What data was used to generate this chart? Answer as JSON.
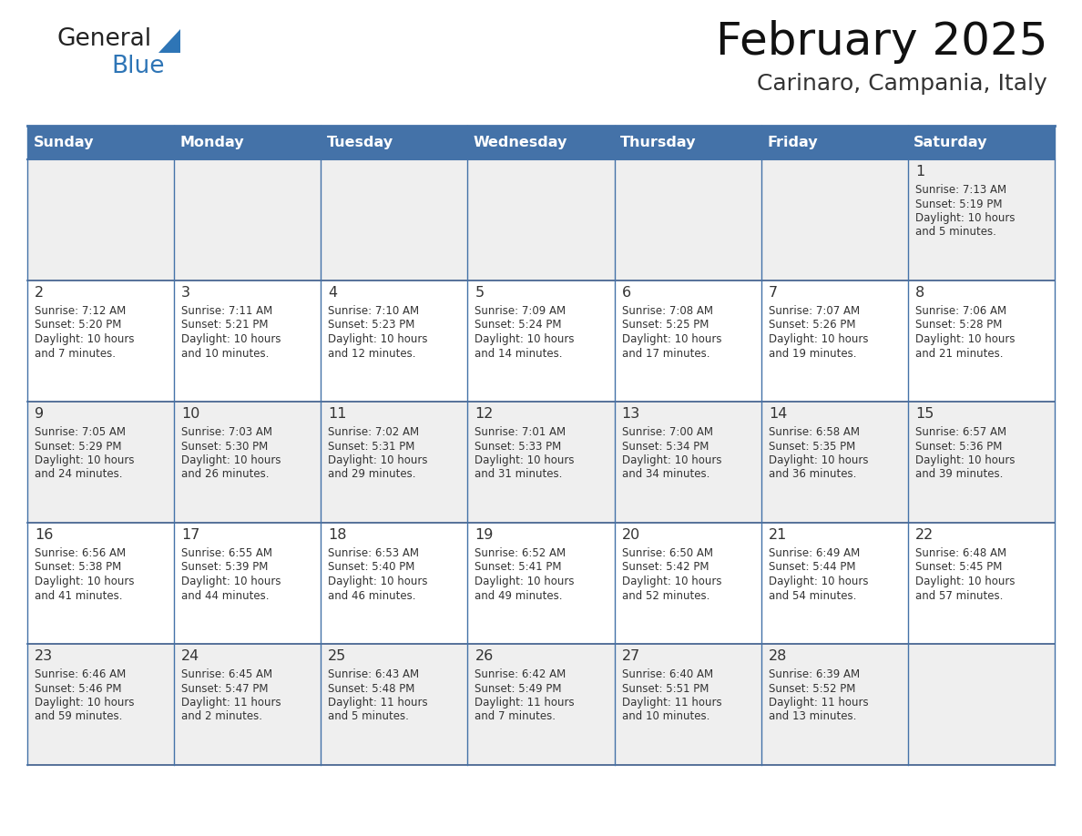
{
  "title": "February 2025",
  "subtitle": "Carinaro, Campania, Italy",
  "days_of_week": [
    "Sunday",
    "Monday",
    "Tuesday",
    "Wednesday",
    "Thursday",
    "Friday",
    "Saturday"
  ],
  "header_bg": "#4472A8",
  "header_text_color": "#FFFFFF",
  "row_bg": [
    "#EFEFEF",
    "#FFFFFF",
    "#EFEFEF",
    "#FFFFFF",
    "#EFEFEF"
  ],
  "grid_line_color": "#4472A8",
  "row_line_color": "#3A5A8A",
  "text_color": "#333333",
  "day_num_color": "#333333",
  "calendar": [
    [
      null,
      null,
      null,
      null,
      null,
      null,
      {
        "day": 1,
        "sunrise": "7:13 AM",
        "sunset": "5:19 PM",
        "daylight": "10 hours\nand 5 minutes."
      }
    ],
    [
      {
        "day": 2,
        "sunrise": "7:12 AM",
        "sunset": "5:20 PM",
        "daylight": "10 hours\nand 7 minutes."
      },
      {
        "day": 3,
        "sunrise": "7:11 AM",
        "sunset": "5:21 PM",
        "daylight": "10 hours\nand 10 minutes."
      },
      {
        "day": 4,
        "sunrise": "7:10 AM",
        "sunset": "5:23 PM",
        "daylight": "10 hours\nand 12 minutes."
      },
      {
        "day": 5,
        "sunrise": "7:09 AM",
        "sunset": "5:24 PM",
        "daylight": "10 hours\nand 14 minutes."
      },
      {
        "day": 6,
        "sunrise": "7:08 AM",
        "sunset": "5:25 PM",
        "daylight": "10 hours\nand 17 minutes."
      },
      {
        "day": 7,
        "sunrise": "7:07 AM",
        "sunset": "5:26 PM",
        "daylight": "10 hours\nand 19 minutes."
      },
      {
        "day": 8,
        "sunrise": "7:06 AM",
        "sunset": "5:28 PM",
        "daylight": "10 hours\nand 21 minutes."
      }
    ],
    [
      {
        "day": 9,
        "sunrise": "7:05 AM",
        "sunset": "5:29 PM",
        "daylight": "10 hours\nand 24 minutes."
      },
      {
        "day": 10,
        "sunrise": "7:03 AM",
        "sunset": "5:30 PM",
        "daylight": "10 hours\nand 26 minutes."
      },
      {
        "day": 11,
        "sunrise": "7:02 AM",
        "sunset": "5:31 PM",
        "daylight": "10 hours\nand 29 minutes."
      },
      {
        "day": 12,
        "sunrise": "7:01 AM",
        "sunset": "5:33 PM",
        "daylight": "10 hours\nand 31 minutes."
      },
      {
        "day": 13,
        "sunrise": "7:00 AM",
        "sunset": "5:34 PM",
        "daylight": "10 hours\nand 34 minutes."
      },
      {
        "day": 14,
        "sunrise": "6:58 AM",
        "sunset": "5:35 PM",
        "daylight": "10 hours\nand 36 minutes."
      },
      {
        "day": 15,
        "sunrise": "6:57 AM",
        "sunset": "5:36 PM",
        "daylight": "10 hours\nand 39 minutes."
      }
    ],
    [
      {
        "day": 16,
        "sunrise": "6:56 AM",
        "sunset": "5:38 PM",
        "daylight": "10 hours\nand 41 minutes."
      },
      {
        "day": 17,
        "sunrise": "6:55 AM",
        "sunset": "5:39 PM",
        "daylight": "10 hours\nand 44 minutes."
      },
      {
        "day": 18,
        "sunrise": "6:53 AM",
        "sunset": "5:40 PM",
        "daylight": "10 hours\nand 46 minutes."
      },
      {
        "day": 19,
        "sunrise": "6:52 AM",
        "sunset": "5:41 PM",
        "daylight": "10 hours\nand 49 minutes."
      },
      {
        "day": 20,
        "sunrise": "6:50 AM",
        "sunset": "5:42 PM",
        "daylight": "10 hours\nand 52 minutes."
      },
      {
        "day": 21,
        "sunrise": "6:49 AM",
        "sunset": "5:44 PM",
        "daylight": "10 hours\nand 54 minutes."
      },
      {
        "day": 22,
        "sunrise": "6:48 AM",
        "sunset": "5:45 PM",
        "daylight": "10 hours\nand 57 minutes."
      }
    ],
    [
      {
        "day": 23,
        "sunrise": "6:46 AM",
        "sunset": "5:46 PM",
        "daylight": "10 hours\nand 59 minutes."
      },
      {
        "day": 24,
        "sunrise": "6:45 AM",
        "sunset": "5:47 PM",
        "daylight": "11 hours\nand 2 minutes."
      },
      {
        "day": 25,
        "sunrise": "6:43 AM",
        "sunset": "5:48 PM",
        "daylight": "11 hours\nand 5 minutes."
      },
      {
        "day": 26,
        "sunrise": "6:42 AM",
        "sunset": "5:49 PM",
        "daylight": "11 hours\nand 7 minutes."
      },
      {
        "day": 27,
        "sunrise": "6:40 AM",
        "sunset": "5:51 PM",
        "daylight": "11 hours\nand 10 minutes."
      },
      {
        "day": 28,
        "sunrise": "6:39 AM",
        "sunset": "5:52 PM",
        "daylight": "11 hours\nand 13 minutes."
      },
      null
    ]
  ],
  "logo_text_color": "#222222",
  "logo_blue_color": "#2E75B6",
  "logo_triangle_color": "#2E75B6",
  "fig_width": 11.88,
  "fig_height": 9.18,
  "dpi": 100
}
